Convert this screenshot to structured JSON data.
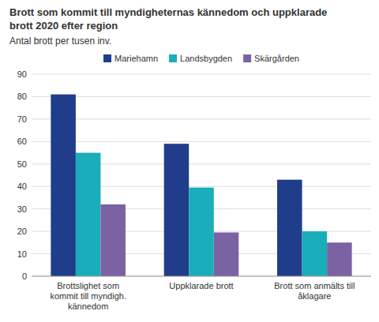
{
  "chart_data": {
    "type": "bar",
    "title": "Brott som kommit till myndigheternas kännedom och uppklarade\nbrott 2020 efter region",
    "subtitle": "Antal brott per tusen inv.",
    "categories": [
      "Brottslighet som\nkommit till myndigh.\nkännedom",
      "Uppklarade brott",
      "Brott som anmälts till\nåklagare"
    ],
    "series": [
      {
        "name": "Mariehamn",
        "color": "#1f3d8a",
        "values": [
          81,
          59,
          43
        ]
      },
      {
        "name": "Landsbygden",
        "color": "#1aadba",
        "values": [
          55,
          39.5,
          20
        ]
      },
      {
        "name": "Skärgården",
        "color": "#7b62a3",
        "values": [
          32,
          19.5,
          15
        ]
      }
    ],
    "ylim": [
      0,
      90
    ],
    "yticks": [
      0,
      10,
      20,
      30,
      40,
      50,
      60,
      70,
      80,
      90
    ],
    "grid": true,
    "legend": "top"
  }
}
